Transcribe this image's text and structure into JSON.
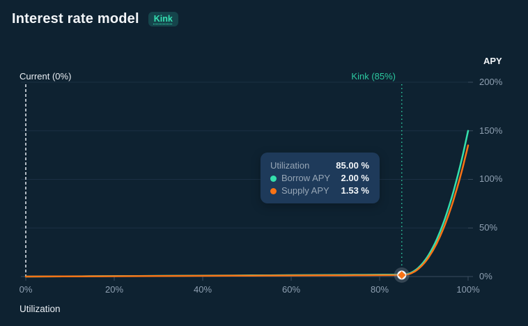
{
  "header": {
    "title": "Interest rate model",
    "badge": "Kink"
  },
  "annotations": {
    "current_label": "Current (0%)",
    "kink_label": "Kink (85%)"
  },
  "axes": {
    "y_title": "APY",
    "x_title": "Utilization",
    "x_ticks": [
      "0%",
      "20%",
      "40%",
      "60%",
      "80%",
      "100%"
    ],
    "y_ticks": [
      "200%",
      "150%",
      "100%",
      "50%",
      "0%"
    ]
  },
  "tooltip": {
    "rows": [
      {
        "label": "Utilization",
        "value": "85.00 %",
        "color": null
      },
      {
        "label": "Borrow APY",
        "value": "2.00 %",
        "color": "#35e0ad"
      },
      {
        "label": "Supply APY",
        "value": "1.53 %",
        "color": "#f97316"
      }
    ]
  },
  "colors": {
    "background": "#0e2231",
    "grid": "#1b3044",
    "axis": "#3a4c5e",
    "borrow": "#35e0ad",
    "supply": "#f97316",
    "kink_line": "#2cc9a0",
    "current_line": "#e8eef4",
    "marker_halo": "#8a93a0",
    "marker_ring": "#f2f5f8",
    "tick_text": "#8fa0b2"
  },
  "chart_data": {
    "type": "line",
    "title": "Interest rate model",
    "xlabel": "Utilization",
    "ylabel": "APY",
    "xlim": [
      0,
      100
    ],
    "ylim": [
      0,
      200
    ],
    "x_tick_values": [
      0,
      20,
      40,
      60,
      80,
      100
    ],
    "y_tick_values": [
      200,
      150,
      100,
      50,
      0
    ],
    "grid": true,
    "legend_position": "tooltip",
    "current_utilization_pct": 0,
    "kink_utilization_pct": 85,
    "hover_utilization_pct": 85,
    "series": [
      {
        "name": "Borrow APY",
        "color": "#35e0ad",
        "points": [
          [
            0,
            0
          ],
          [
            85,
            2.0
          ],
          [
            100,
            150
          ]
        ],
        "curve_exponent": 2.2
      },
      {
        "name": "Supply APY",
        "color": "#f97316",
        "points": [
          [
            0,
            0
          ],
          [
            85,
            1.53
          ],
          [
            100,
            135
          ]
        ],
        "curve_exponent": 2.2
      }
    ],
    "marker": {
      "x": 85,
      "y": 1.53,
      "series": "Supply APY",
      "shape": "diamond"
    }
  }
}
